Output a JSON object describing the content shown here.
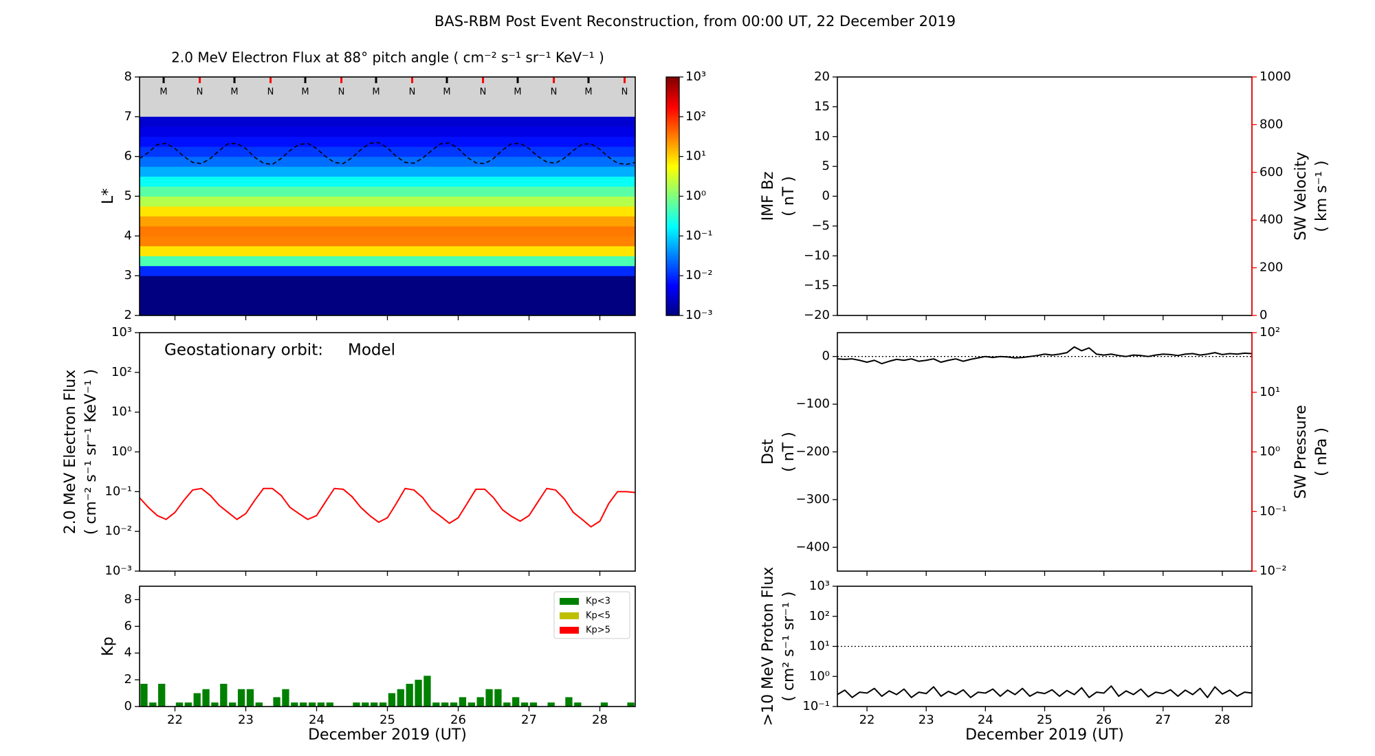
{
  "title": "BAS-RBM Post Event Reconstruction, from 00:00 UT, 22 December 2019",
  "chart_data": [
    {
      "type": "heatmap",
      "title": "2.0 MeV Electron Flux at 88° pitch angle ( cm⁻² s⁻¹ sr⁻¹ KeV⁻¹ )",
      "ylabel": [
        "L*"
      ],
      "xlim": [
        21.5,
        28.5
      ],
      "xticks": [
        22,
        23,
        24,
        25,
        26,
        27,
        28
      ],
      "ylim": [
        2,
        8
      ],
      "yticks": [
        2,
        3,
        4,
        5,
        6,
        7,
        8
      ],
      "ybins": [
        2,
        2.25,
        2.5,
        2.75,
        3,
        3.25,
        3.5,
        3.75,
        4,
        4.25,
        4.5,
        4.75,
        5,
        5.25,
        5.5,
        5.75,
        6,
        6.25,
        6.5,
        6.75,
        7
      ],
      "values": [
        0.001,
        0.001,
        0.001,
        0.001,
        0.01,
        0.5,
        8,
        30,
        35,
        20,
        8,
        2,
        0.6,
        0.2,
        0.06,
        0.025,
        0.012,
        0.007,
        0.004,
        0.003
      ],
      "nodata_color": "#d3d3d3",
      "colorbar": {
        "log": true,
        "colormap": "jet",
        "lim": [
          0.001,
          1000
        ],
        "ticks": [
          {
            "value": 0.001,
            "label": "10⁻³"
          },
          {
            "value": 0.01,
            "label": "10⁻²"
          },
          {
            "value": 0.1,
            "label": "10⁻¹"
          },
          {
            "value": 1,
            "label": "10⁰"
          },
          {
            "value": 10,
            "label": "10¹"
          },
          {
            "value": 100,
            "label": "10²"
          },
          {
            "value": 1000,
            "label": "10³"
          }
        ]
      },
      "series": [
        {
          "color": "#000000",
          "style": "dashed",
          "x": [
            21.5,
            21.625,
            21.75,
            21.875,
            22,
            22.125,
            22.25,
            22.375,
            22.5,
            22.625,
            22.75,
            22.875,
            23,
            23.125,
            23.25,
            23.375,
            23.5,
            23.625,
            23.75,
            23.875,
            24,
            24.125,
            24.25,
            24.375,
            24.5,
            24.625,
            24.75,
            24.875,
            25,
            25.125,
            25.25,
            25.375,
            25.5,
            25.625,
            25.75,
            25.875,
            26,
            26.125,
            26.25,
            26.375,
            26.5,
            26.625,
            26.75,
            26.875,
            27,
            27.125,
            27.25,
            27.375,
            27.5,
            27.625,
            27.75,
            27.875,
            28,
            28.125,
            28.25,
            28.375,
            28.5
          ],
          "values": [
            5.95,
            6.1,
            6.3,
            6.33,
            6.2,
            6.0,
            5.85,
            5.82,
            5.95,
            6.15,
            6.32,
            6.33,
            6.2,
            5.98,
            5.83,
            5.8,
            5.95,
            6.15,
            6.3,
            6.33,
            6.2,
            6.0,
            5.85,
            5.82,
            5.97,
            6.17,
            6.33,
            6.35,
            6.22,
            6.0,
            5.85,
            5.83,
            5.96,
            6.15,
            6.32,
            6.34,
            6.2,
            5.98,
            5.84,
            5.82,
            5.95,
            6.16,
            6.32,
            6.33,
            6.2,
            6.0,
            5.86,
            5.83,
            5.96,
            6.15,
            6.31,
            6.32,
            6.18,
            5.98,
            5.83,
            5.8,
            5.85
          ]
        }
      ],
      "markers": [
        {
          "label": "M",
          "color": "#000000",
          "x": [
            21.84,
            22.84,
            23.84,
            24.84,
            25.84,
            26.84,
            27.84
          ]
        },
        {
          "label": "N",
          "color": "#ff0000",
          "x": [
            22.35,
            23.35,
            24.35,
            25.35,
            26.35,
            27.35,
            28.35
          ]
        }
      ]
    },
    {
      "type": "line",
      "ylabel": [
        "2.0 MeV Electron Flux",
        "( cm⁻² s⁻¹ sr⁻¹ KeV⁻¹ )"
      ],
      "annotations": [
        {
          "text": "Geostationary orbit:",
          "color": "#000000"
        },
        {
          "text": "Model",
          "color": "#ff0000"
        }
      ],
      "xlim": [
        21.5,
        28.5
      ],
      "xticks": [
        22,
        23,
        24,
        25,
        26,
        27,
        28
      ],
      "ylog": true,
      "ylim": [
        0.001,
        1000
      ],
      "yticks": [
        {
          "value": 0.001,
          "label": "10⁻³"
        },
        {
          "value": 0.01,
          "label": "10⁻²"
        },
        {
          "value": 0.1,
          "label": "10⁻¹"
        },
        {
          "value": 1,
          "label": "10⁰"
        },
        {
          "value": 10,
          "label": "10¹"
        },
        {
          "value": 100,
          "label": "10²"
        },
        {
          "value": 1000,
          "label": "10³"
        }
      ],
      "series": [
        {
          "color": "#ff0000",
          "x": [
            21.5,
            21.625,
            21.75,
            21.875,
            22,
            22.125,
            22.25,
            22.375,
            22.5,
            22.625,
            22.75,
            22.875,
            23,
            23.125,
            23.25,
            23.375,
            23.5,
            23.625,
            23.75,
            23.875,
            24,
            24.125,
            24.25,
            24.375,
            24.5,
            24.625,
            24.75,
            24.875,
            25,
            25.125,
            25.25,
            25.375,
            25.5,
            25.625,
            25.75,
            25.875,
            26,
            26.125,
            26.25,
            26.375,
            26.5,
            26.625,
            26.75,
            26.875,
            27,
            27.125,
            27.25,
            27.375,
            27.5,
            27.625,
            27.75,
            27.875,
            28,
            28.125,
            28.25,
            28.375,
            28.5
          ],
          "values": [
            0.07,
            0.04,
            0.025,
            0.02,
            0.03,
            0.06,
            0.11,
            0.12,
            0.08,
            0.045,
            0.03,
            0.02,
            0.028,
            0.06,
            0.12,
            0.12,
            0.08,
            0.04,
            0.028,
            0.02,
            0.025,
            0.055,
            0.12,
            0.115,
            0.075,
            0.04,
            0.025,
            0.017,
            0.022,
            0.05,
            0.12,
            0.11,
            0.07,
            0.035,
            0.024,
            0.016,
            0.022,
            0.05,
            0.115,
            0.115,
            0.07,
            0.035,
            0.024,
            0.018,
            0.025,
            0.055,
            0.12,
            0.11,
            0.065,
            0.03,
            0.02,
            0.013,
            0.018,
            0.05,
            0.1,
            0.1,
            0.095
          ]
        }
      ]
    },
    {
      "type": "bar",
      "ylabel": [
        "Kp"
      ],
      "xlabel": "December 2019 (UT)",
      "xlim": [
        21.5,
        28.5
      ],
      "xticks": [
        22,
        23,
        24,
        25,
        26,
        27,
        28
      ],
      "ylim": [
        0,
        9
      ],
      "yticks": [
        0,
        2,
        4,
        6,
        8
      ],
      "color": "#008000",
      "legend_position": "upper right",
      "legend": [
        {
          "name": "Kp<3",
          "color": "#008000"
        },
        {
          "name": "Kp<5",
          "color": "#bfbf00"
        },
        {
          "name": "Kp>5",
          "color": "#ff0000"
        }
      ],
      "x": [
        21.5625,
        21.6875,
        21.8125,
        21.9375,
        22.0625,
        22.1875,
        22.3125,
        22.4375,
        22.5625,
        22.6875,
        22.8125,
        22.9375,
        23.0625,
        23.1875,
        23.3125,
        23.4375,
        23.5625,
        23.6875,
        23.8125,
        23.9375,
        24.0625,
        24.1875,
        24.3125,
        24.4375,
        24.5625,
        24.6875,
        24.8125,
        24.9375,
        25.0625,
        25.1875,
        25.3125,
        25.4375,
        25.5625,
        25.6875,
        25.8125,
        25.9375,
        26.0625,
        26.1875,
        26.3125,
        26.4375,
        26.5625,
        26.6875,
        26.8125,
        26.9375,
        27.0625,
        27.1875,
        27.3125,
        27.4375,
        27.5625,
        27.6875,
        27.8125,
        27.9375,
        28.0625,
        28.1875,
        28.3125,
        28.4375
      ],
      "values": [
        1.7,
        0.3,
        1.7,
        0,
        0.3,
        0.3,
        1.0,
        1.3,
        0.3,
        1.7,
        0.3,
        1.3,
        1.3,
        0.3,
        0,
        0.7,
        1.3,
        0.3,
        0.3,
        0.3,
        0.3,
        0.3,
        0,
        0,
        0.3,
        0.3,
        0.3,
        0.3,
        1.0,
        1.3,
        1.7,
        2.0,
        2.3,
        0.3,
        0.3,
        0.3,
        0.7,
        0.3,
        0.7,
        1.3,
        1.3,
        0.3,
        0.7,
        0.3,
        0.3,
        0,
        0.3,
        0,
        0.7,
        0.3,
        0,
        0,
        0.3,
        0,
        0,
        0.3
      ]
    },
    {
      "type": "line",
      "ylabel": [
        "IMF Bz",
        "( nT )"
      ],
      "y2label": [
        "SW Velocity",
        "( km s⁻¹ )"
      ],
      "y2color": "#ff0000",
      "xlim": [
        21.5,
        28.5
      ],
      "xticks": [
        22,
        23,
        24,
        25,
        26,
        27,
        28
      ],
      "ylim": [
        -20,
        20
      ],
      "yticks": [
        {
          "value": -20,
          "label": "−20"
        },
        {
          "value": -15,
          "label": "−15"
        },
        {
          "value": -10,
          "label": "−10"
        },
        {
          "value": -5,
          "label": "−5"
        },
        0,
        5,
        10,
        15,
        20
      ],
      "y2lim": [
        0,
        1000
      ],
      "y2ticks": [
        0,
        200,
        400,
        600,
        800,
        1000
      ],
      "series": []
    },
    {
      "type": "line",
      "ylabel": [
        "Dst",
        "( nT )"
      ],
      "y2label": [
        "SW Pressure",
        "( nPa )"
      ],
      "y2color": "#ff0000",
      "xlim": [
        21.5,
        28.5
      ],
      "xticks": [
        22,
        23,
        24,
        25,
        26,
        27,
        28
      ],
      "ylim": [
        -450,
        50
      ],
      "yticks": [
        {
          "value": -400,
          "label": "−400"
        },
        {
          "value": -300,
          "label": "−300"
        },
        {
          "value": -200,
          "label": "−200"
        },
        {
          "value": -100,
          "label": "−100"
        },
        0
      ],
      "y2log": true,
      "y2lim": [
        0.01,
        100
      ],
      "y2ticks": [
        {
          "value": 0.01,
          "label": "10⁻²"
        },
        {
          "value": 0.1,
          "label": "10⁻¹"
        },
        {
          "value": 1,
          "label": "10⁰"
        },
        {
          "value": 10,
          "label": "10¹"
        },
        {
          "value": 100,
          "label": "10²"
        }
      ],
      "hline": 0,
      "series": [
        {
          "color": "#000000",
          "x": [
            21.5,
            21.625,
            21.75,
            21.875,
            22,
            22.125,
            22.25,
            22.375,
            22.5,
            22.625,
            22.75,
            22.875,
            23,
            23.125,
            23.25,
            23.375,
            23.5,
            23.625,
            23.75,
            23.875,
            24,
            24.125,
            24.25,
            24.375,
            24.5,
            24.625,
            24.75,
            24.875,
            25,
            25.125,
            25.25,
            25.375,
            25.5,
            25.625,
            25.75,
            25.875,
            26,
            26.125,
            26.25,
            26.375,
            26.5,
            26.625,
            26.75,
            26.875,
            27,
            27.125,
            27.25,
            27.375,
            27.5,
            27.625,
            27.75,
            27.875,
            28,
            28.125,
            28.25,
            28.375,
            28.5
          ],
          "values": [
            -5,
            -6,
            -5,
            -8,
            -12,
            -8,
            -15,
            -10,
            -6,
            -8,
            -5,
            -10,
            -8,
            -5,
            -12,
            -8,
            -5,
            -10,
            -6,
            -3,
            0,
            -2,
            0,
            -1,
            -3,
            -2,
            0,
            2,
            5,
            3,
            5,
            8,
            20,
            12,
            18,
            5,
            3,
            5,
            2,
            0,
            3,
            2,
            0,
            3,
            5,
            4,
            2,
            5,
            6,
            3,
            5,
            8,
            4,
            6,
            5,
            7,
            6
          ]
        }
      ]
    },
    {
      "type": "line",
      "ylabel": [
        ">10 MeV Proton Flux",
        "( cm² s⁻¹ sr⁻¹ )"
      ],
      "xlabel": "December 2019 (UT)",
      "xlim": [
        21.5,
        28.5
      ],
      "xticks": [
        22,
        23,
        24,
        25,
        26,
        27,
        28
      ],
      "ylog": true,
      "ylim": [
        0.1,
        1000
      ],
      "yticks": [
        {
          "value": 0.1,
          "label": "10⁻¹"
        },
        {
          "value": 1,
          "label": "10⁰"
        },
        {
          "value": 10,
          "label": "10¹"
        },
        {
          "value": 100,
          "label": "10²"
        },
        {
          "value": 1000,
          "label": "10³"
        }
      ],
      "hline": 10,
      "series": [
        {
          "color": "#000000",
          "x": [
            21.5,
            21.625,
            21.75,
            21.875,
            22,
            22.125,
            22.25,
            22.375,
            22.5,
            22.625,
            22.75,
            22.875,
            23,
            23.125,
            23.25,
            23.375,
            23.5,
            23.625,
            23.75,
            23.875,
            24,
            24.125,
            24.25,
            24.375,
            24.5,
            24.625,
            24.75,
            24.875,
            25,
            25.125,
            25.25,
            25.375,
            25.5,
            25.625,
            25.75,
            25.875,
            26,
            26.125,
            26.25,
            26.375,
            26.5,
            26.625,
            26.75,
            26.875,
            27,
            27.125,
            27.25,
            27.375,
            27.5,
            27.625,
            27.75,
            27.875,
            28,
            28.125,
            28.25,
            28.375,
            28.5
          ],
          "values": [
            0.25,
            0.35,
            0.2,
            0.3,
            0.28,
            0.4,
            0.22,
            0.33,
            0.25,
            0.38,
            0.2,
            0.3,
            0.27,
            0.45,
            0.22,
            0.32,
            0.25,
            0.36,
            0.2,
            0.3,
            0.28,
            0.38,
            0.22,
            0.35,
            0.25,
            0.4,
            0.22,
            0.3,
            0.27,
            0.36,
            0.22,
            0.34,
            0.25,
            0.42,
            0.2,
            0.3,
            0.28,
            0.48,
            0.22,
            0.33,
            0.25,
            0.38,
            0.21,
            0.3,
            0.27,
            0.36,
            0.22,
            0.35,
            0.25,
            0.4,
            0.2,
            0.45,
            0.26,
            0.35,
            0.22,
            0.3,
            0.28
          ]
        }
      ]
    }
  ]
}
